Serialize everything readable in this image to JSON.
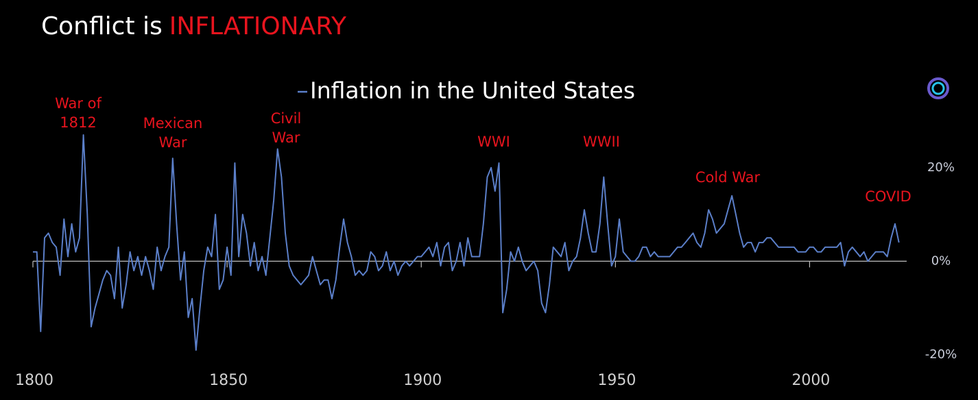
{
  "chart_data": {
    "type": "line",
    "title": "Conflict is",
    "title_highlight": "INFLATIONARY",
    "x": [
      1800,
      1801,
      1802,
      1803,
      1804,
      1805,
      1806,
      1807,
      1808,
      1809,
      1810,
      1811,
      1812,
      1813,
      1814,
      1815,
      1816,
      1817,
      1818,
      1819,
      1820,
      1821,
      1822,
      1823,
      1824,
      1825,
      1826,
      1827,
      1828,
      1829,
      1830,
      1831,
      1832,
      1833,
      1834,
      1835,
      1836,
      1837,
      1838,
      1839,
      1840,
      1841,
      1842,
      1843,
      1844,
      1845,
      1846,
      1847,
      1848,
      1849,
      1850,
      1851,
      1852,
      1853,
      1854,
      1855,
      1856,
      1857,
      1858,
      1859,
      1860,
      1861,
      1862,
      1863,
      1864,
      1865,
      1866,
      1867,
      1868,
      1869,
      1870,
      1871,
      1872,
      1873,
      1874,
      1875,
      1876,
      1877,
      1878,
      1879,
      1880,
      1881,
      1882,
      1883,
      1884,
      1885,
      1886,
      1887,
      1888,
      1889,
      1890,
      1891,
      1892,
      1893,
      1894,
      1895,
      1896,
      1897,
      1898,
      1899,
      1900,
      1901,
      1902,
      1903,
      1904,
      1905,
      1906,
      1907,
      1908,
      1909,
      1910,
      1911,
      1912,
      1913,
      1914,
      1915,
      1916,
      1917,
      1918,
      1919,
      1920,
      1921,
      1922,
      1923,
      1924,
      1925,
      1926,
      1927,
      1928,
      1929,
      1930,
      1931,
      1932,
      1933,
      1934,
      1935,
      1936,
      1937,
      1938,
      1939,
      1940,
      1941,
      1942,
      1943,
      1944,
      1945,
      1946,
      1947,
      1948,
      1949,
      1950,
      1951,
      1952,
      1953,
      1954,
      1955,
      1956,
      1957,
      1958,
      1959,
      1960,
      1961,
      1962,
      1963,
      1964,
      1965,
      1966,
      1967,
      1968,
      1969,
      1970,
      1971,
      1972,
      1973,
      1974,
      1975,
      1976,
      1977,
      1978,
      1979,
      1980,
      1981,
      1982,
      1983,
      1984,
      1985,
      1986,
      1987,
      1988,
      1989,
      1990,
      1991,
      1992,
      1993,
      1994,
      1995,
      1996,
      1997,
      1998,
      1999,
      2000,
      2001,
      2002,
      2003,
      2004,
      2005,
      2006,
      2007,
      2008,
      2009,
      2010,
      2011,
      2012,
      2013,
      2014,
      2015,
      2016,
      2017,
      2018,
      2019,
      2020,
      2021,
      2022,
      2023
    ],
    "series": [
      {
        "name": "Inflation in the United States",
        "color": "#5b7fc9",
        "values": [
          2,
          2,
          -15,
          5,
          6,
          4,
          3,
          -3,
          9,
          1,
          8,
          2,
          5,
          27,
          10,
          -14,
          -10,
          -7,
          -4,
          -2,
          -3,
          -8,
          3,
          -10,
          -5,
          2,
          -2,
          1,
          -3,
          1,
          -2,
          -6,
          3,
          -2,
          1,
          3,
          22,
          8,
          -4,
          2,
          -12,
          -8,
          -19,
          -10,
          -2,
          3,
          1,
          10,
          -6,
          -4,
          3,
          -3,
          21,
          1,
          10,
          6,
          -1,
          4,
          -2,
          1,
          -3,
          5,
          13,
          24,
          18,
          6,
          -1,
          -3,
          -4,
          -5,
          -4,
          -3,
          1,
          -2,
          -5,
          -4,
          -4,
          -8,
          -4,
          3,
          9,
          4,
          1,
          -3,
          -2,
          -3,
          -2,
          2,
          1,
          -2,
          -1,
          2,
          -2,
          0,
          -3,
          -1,
          0,
          -1,
          0,
          1,
          1,
          2,
          3,
          1,
          4,
          -1,
          3,
          4,
          -2,
          0,
          4,
          -1,
          5,
          1,
          1,
          1,
          8,
          18,
          20,
          15,
          21,
          -11,
          -6,
          2,
          0,
          3,
          0,
          -2,
          -1,
          0,
          -2,
          -9,
          -11,
          -5,
          3,
          2,
          1,
          4,
          -2,
          0,
          1,
          5,
          11,
          6,
          2,
          2,
          8,
          18,
          8,
          -1,
          1,
          9,
          2,
          1,
          0,
          0,
          1,
          3,
          3,
          1,
          2,
          1,
          1,
          1,
          1,
          2,
          3,
          3,
          4,
          5,
          6,
          4,
          3,
          6,
          11,
          9,
          6,
          7,
          8,
          11,
          14,
          10,
          6,
          3,
          4,
          4,
          2,
          4,
          4,
          5,
          5,
          4,
          3,
          3,
          3,
          3,
          3,
          2,
          2,
          2,
          3,
          3,
          2,
          2,
          3,
          3,
          3,
          3,
          4,
          -1,
          2,
          3,
          2,
          1,
          2,
          0,
          1,
          2,
          2,
          2,
          1,
          5,
          8,
          4
        ]
      }
    ],
    "xlim": [
      1800,
      2025
    ],
    "ylim": [
      -20,
      30
    ],
    "xticks": [
      1800,
      1850,
      1900,
      1950,
      2000
    ],
    "yticks": [
      {
        "value": -20,
        "label": "-20%"
      },
      {
        "value": 0,
        "label": "0%"
      },
      {
        "value": 20,
        "label": "20%"
      }
    ],
    "annotations": [
      {
        "lines": [
          "War of",
          "1812"
        ]
      },
      {
        "lines": [
          "Mexican",
          "War"
        ]
      },
      {
        "lines": [
          "Civil",
          "War"
        ]
      },
      {
        "lines": [
          "WWI"
        ]
      },
      {
        "lines": [
          "WWII"
        ]
      },
      {
        "lines": [
          "Cold War"
        ]
      },
      {
        "lines": [
          "COVID"
        ]
      }
    ]
  }
}
